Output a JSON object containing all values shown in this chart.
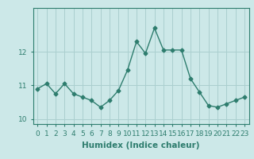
{
  "x": [
    0,
    1,
    2,
    3,
    4,
    5,
    6,
    7,
    8,
    9,
    10,
    11,
    12,
    13,
    14,
    15,
    16,
    17,
    18,
    19,
    20,
    21,
    22,
    23
  ],
  "y": [
    10.9,
    11.05,
    10.75,
    11.05,
    10.75,
    10.65,
    10.55,
    10.35,
    10.55,
    10.85,
    11.45,
    12.3,
    11.95,
    12.7,
    12.05,
    12.05,
    12.05,
    11.2,
    10.8,
    10.4,
    10.35,
    10.45,
    10.55,
    10.65
  ],
  "line_color": "#2e7d6e",
  "marker": "D",
  "markersize": 2.5,
  "linewidth": 1.0,
  "xlabel": "Humidex (Indice chaleur)",
  "ylim": [
    9.85,
    13.3
  ],
  "xlim": [
    -0.5,
    23.5
  ],
  "yticks": [
    10,
    11,
    12
  ],
  "xticks": [
    0,
    1,
    2,
    3,
    4,
    5,
    6,
    7,
    8,
    9,
    10,
    11,
    12,
    13,
    14,
    15,
    16,
    17,
    18,
    19,
    20,
    21,
    22,
    23
  ],
  "bg_color": "#cce8e8",
  "grid_color": "#aacfcf",
  "tick_label_fontsize": 6.5,
  "xlabel_fontsize": 7.5
}
